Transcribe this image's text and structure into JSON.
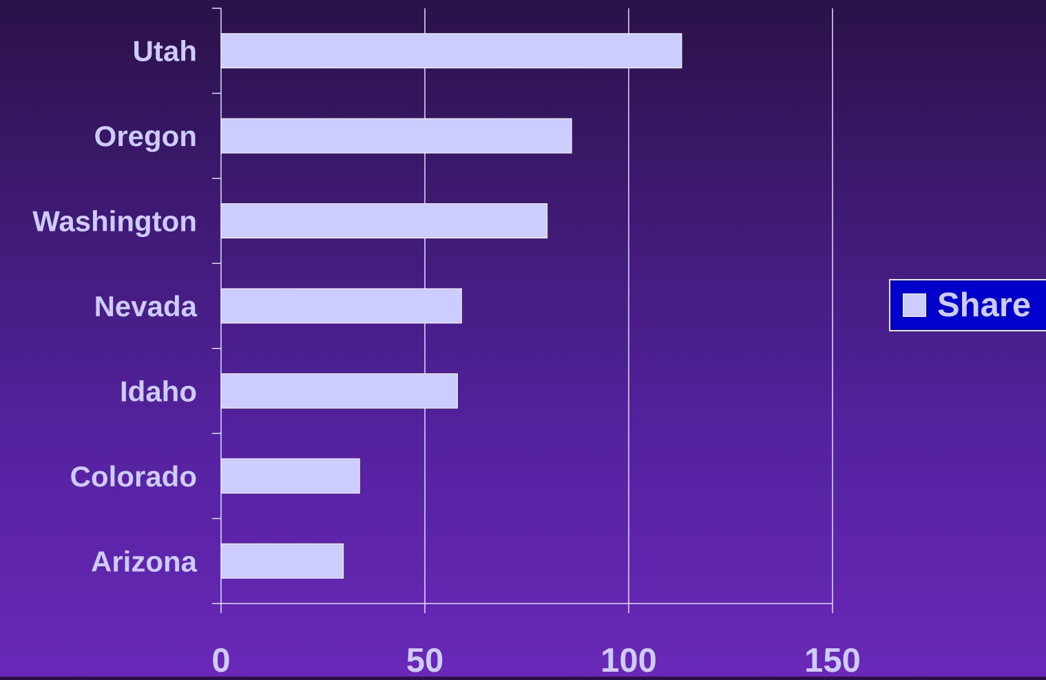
{
  "chart_data": {
    "type": "bar",
    "orientation": "horizontal",
    "categories": [
      "Utah",
      "Oregon",
      "Washington",
      "Nevada",
      "Idaho",
      "Colorado",
      "Arizona"
    ],
    "series": [
      {
        "name": "Share",
        "values": [
          113,
          86,
          80,
          59,
          58,
          34,
          30
        ]
      }
    ],
    "xlim": [
      0,
      150
    ],
    "xticks": [
      "0",
      "50",
      "100",
      "150"
    ],
    "grid": true,
    "legend": "right",
    "title": "",
    "xlabel": "",
    "ylabel": ""
  },
  "colors": {
    "bar_fill": "#ccccff",
    "grid": "#e0e0ff",
    "label_text": "#ccccff",
    "legend_bg": "#0000cc"
  }
}
